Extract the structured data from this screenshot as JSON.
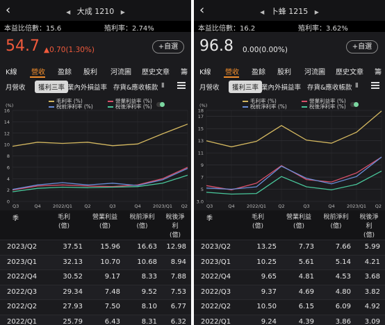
{
  "panels": [
    {
      "stock_name": "大成 1210",
      "pe_label": "本益比倍數：15.6",
      "yield_label": "殖利率：2.74%",
      "price": "54.7",
      "change": "▲0.70(1.30%)",
      "price_color": "#f05a3c",
      "watch_label": "+自選",
      "tabs": [
        "K線",
        "營收",
        "盈餘",
        "股利",
        "河流圖",
        "歷史文章",
        "籌"
      ],
      "active_tab": 1,
      "subtabs": [
        "月營收",
        "獲利三率",
        "業內外損益率",
        "存貨&應收帳款",
        "Ⅱ"
      ],
      "active_subtab": 1,
      "legend": [
        "毛利率 (%)",
        "營業利益率 (%)",
        "稅前淨利率 (%)",
        "稅後淨利率 (%)"
      ],
      "table": {
        "headers": [
          "季",
          "毛利\n(億)",
          "營業利益\n(億)",
          "稅前淨利\n(億)",
          "稅後淨利\n(億)"
        ],
        "rows": [
          [
            "2023/Q2",
            "37.51",
            "15.96",
            "16.63",
            "12.98"
          ],
          [
            "2023/Q1",
            "32.13",
            "10.70",
            "10.68",
            "8.94"
          ],
          [
            "2022/Q4",
            "30.52",
            "9.17",
            "8.33",
            "7.88"
          ],
          [
            "2022/Q3",
            "29.34",
            "7.48",
            "9.52",
            "7.53"
          ],
          [
            "2022/Q2",
            "27.93",
            "7.50",
            "8.10",
            "6.77"
          ],
          [
            "2022/Q1",
            "25.79",
            "6.43",
            "8.31",
            "6.32"
          ]
        ]
      }
    },
    {
      "stock_name": "卜蜂 1215",
      "pe_label": "本益比倍數：16.2",
      "yield_label": "殖利率：3.62%",
      "price": "96.8",
      "change": "0.00(0.00%)",
      "price_color": "#e8e8e8",
      "watch_label": "+自選",
      "tabs": [
        "K線",
        "營收",
        "盈餘",
        "股利",
        "河流圖",
        "歷史文章",
        "籌"
      ],
      "active_tab": 1,
      "subtabs": [
        "月營收",
        "獲利三率",
        "業內外損益率",
        "存貨&應收帳款",
        "Ⅱ"
      ],
      "active_subtab": 1,
      "legend": [
        "毛利率 (%)",
        "營業利益率 (%)",
        "稅前淨利率 (%)",
        "稅後淨利率 (%)"
      ],
      "table": {
        "headers": [
          "季",
          "毛利\n(億)",
          "營業利益\n(億)",
          "稅前淨利\n(億)",
          "稅後淨利\n(億)"
        ],
        "rows": [
          [
            "2023/Q2",
            "13.25",
            "7.73",
            "7.66",
            "5.99"
          ],
          [
            "2023/Q1",
            "10.25",
            "5.61",
            "5.14",
            "4.21"
          ],
          [
            "2022/Q4",
            "9.65",
            "4.81",
            "4.53",
            "3.68"
          ],
          [
            "2022/Q3",
            "9.37",
            "4.69",
            "4.80",
            "3.82"
          ],
          [
            "2022/Q2",
            "10.50",
            "6.15",
            "6.09",
            "4.92"
          ],
          [
            "2022/Q1",
            "9.24",
            "4.39",
            "3.86",
            "3.09"
          ]
        ]
      }
    }
  ],
  "chart_data": [
    {
      "type": "line",
      "ylabel": "(%)",
      "ylim": [
        0,
        16
      ],
      "yticks": [
        "0",
        "2",
        "4",
        "6",
        "8",
        "10",
        "12",
        "14",
        "16"
      ],
      "x_ticks": [
        "Q3",
        "Q4",
        "2022/Q1",
        "Q2",
        "Q3",
        "Q4",
        "2023/Q1",
        "Q2"
      ],
      "grid": true,
      "series": [
        {
          "name": "毛利率 (%)",
          "color": "#d4b860",
          "values": [
            9.7,
            10.4,
            10.2,
            10.4,
            9.8,
            10.1,
            11.9,
            13.6
          ]
        },
        {
          "name": "營業利益率 (%)",
          "color": "#d8506a",
          "values": [
            2.0,
            2.7,
            2.9,
            2.7,
            2.6,
            2.9,
            4.0,
            6.0
          ]
        },
        {
          "name": "稅前淨利率 (%)",
          "color": "#6a8ed8",
          "values": [
            2.1,
            2.9,
            3.3,
            2.9,
            3.2,
            2.8,
            3.8,
            5.8
          ]
        },
        {
          "name": "稅後淨利率 (%)",
          "color": "#49c79b",
          "values": [
            1.7,
            2.3,
            2.5,
            2.4,
            2.5,
            2.6,
            3.2,
            4.6
          ]
        }
      ]
    },
    {
      "type": "line",
      "ylabel": "(%)",
      "ylim": [
        3,
        18
      ],
      "yticks": [
        "3.0",
        "5",
        "7",
        "9",
        "11",
        "13",
        "15",
        "17",
        "18"
      ],
      "x_ticks": [
        "Q3",
        "Q4",
        "2022/Q1",
        "Q2",
        "Q3",
        "Q4",
        "2023/Q1",
        "Q2"
      ],
      "grid": true,
      "series": [
        {
          "name": "毛利率 (%)",
          "color": "#d4b860",
          "values": [
            13.0,
            12.0,
            12.9,
            15.5,
            13.1,
            12.6,
            14.4,
            17.9
          ]
        },
        {
          "name": "營業利益率 (%)",
          "color": "#d8506a",
          "values": [
            5.6,
            4.9,
            6.0,
            8.9,
            6.6,
            6.2,
            7.7,
            10.3
          ]
        },
        {
          "name": "稅前淨利率 (%)",
          "color": "#6a8ed8",
          "values": [
            5.2,
            5.0,
            5.4,
            8.8,
            6.8,
            5.9,
            7.1,
            10.3
          ]
        },
        {
          "name": "稅後淨利率 (%)",
          "color": "#49c79b",
          "values": [
            4.5,
            4.2,
            4.3,
            7.1,
            5.4,
            4.9,
            5.8,
            8.0
          ]
        }
      ]
    }
  ]
}
